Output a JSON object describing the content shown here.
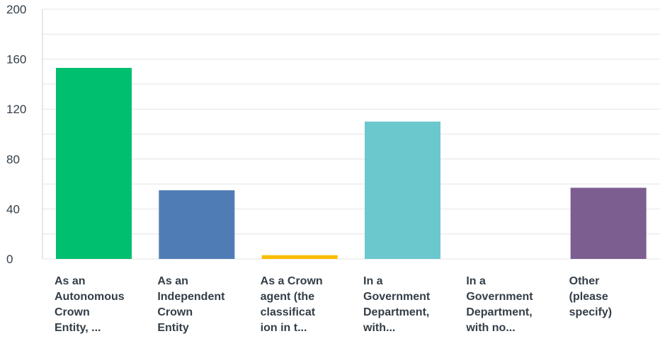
{
  "chart_data": {
    "type": "bar",
    "categories": [
      [
        "As an",
        "Autonomous",
        "Crown",
        "Entity, ..."
      ],
      [
        "As an",
        "Independent",
        "Crown",
        "Entity"
      ],
      [
        "As a Crown",
        "agent (the",
        "classificat",
        "ion in t..."
      ],
      [
        "In a",
        "Government",
        "Department,",
        "with..."
      ],
      [
        "In a",
        "Government",
        "Department,",
        "with no..."
      ],
      [
        "Other",
        "(please",
        "specify)"
      ]
    ],
    "values": [
      153,
      55,
      3,
      110,
      0,
      57
    ],
    "colors": [
      "#00bf6f",
      "#507cb6",
      "#f9be00",
      "#6bc8cd",
      "#ff8b4f",
      "#7d5e90"
    ],
    "yticks": [
      0,
      40,
      80,
      120,
      160,
      200
    ],
    "ylim": [
      0,
      200
    ],
    "grid": true,
    "xlabel": "",
    "ylabel": "",
    "title": ""
  }
}
